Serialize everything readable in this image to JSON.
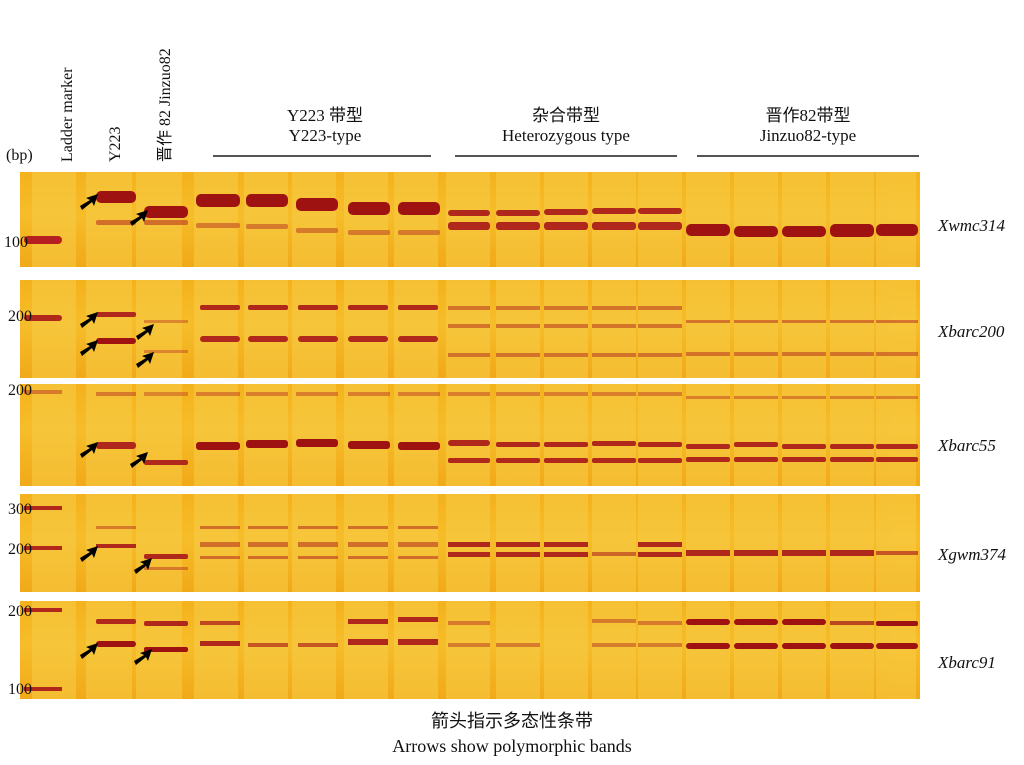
{
  "figure": {
    "unit_label": "(bp)",
    "lane_headers": [
      "Ladder marker",
      "Y223",
      "晋作 82 Jinzuo82"
    ],
    "groups": [
      {
        "name_cn": "Y223 带型",
        "name_en": "Y223-type"
      },
      {
        "name_cn": "杂合带型",
        "name_en": "Heterozygous type"
      },
      {
        "name_cn": "晋作82带型",
        "name_en": "Jinzuo82-type"
      }
    ],
    "markers": [
      {
        "name": "Xwmc314",
        "ladder_labels": [
          "100"
        ]
      },
      {
        "name": "Xbarc200",
        "ladder_labels": [
          "200"
        ]
      },
      {
        "name": "Xbarc55",
        "ladder_labels": [
          "200"
        ]
      },
      {
        "name": "Xgwm374",
        "ladder_labels": [
          "300",
          "200"
        ]
      },
      {
        "name": "Xbarc91",
        "ladder_labels": [
          "200",
          "100"
        ]
      }
    ],
    "caption_cn": "箭头指示多态性条带",
    "caption_en": "Arrows show polymorphic bands",
    "colors": {
      "gel": "#f4b21c",
      "band": "#b51f1f",
      "lane": "#f8cd47",
      "arrow": "#000000"
    }
  }
}
